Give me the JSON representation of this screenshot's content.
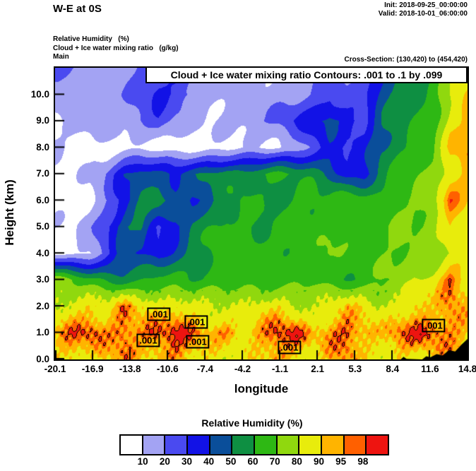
{
  "header": {
    "title": "W-E at 0S",
    "init": "Init: 2018-09-25_00:00:00",
    "valid": "Valid: 2018-10-01_06:00:00"
  },
  "info": {
    "line1": "Relative Humidity   (%)",
    "line2": "Cloud + Ice water mixing ratio   (g/kg)",
    "line3": "Main",
    "cross_section": "Cross-Section: (130,420) to (454,420)"
  },
  "plot": {
    "contour_title": "Cloud + Ice water mixing ratio Contours: .001 to .1 by .099",
    "xlabel": "longitude",
    "ylabel": "Height (km)"
  },
  "colorbar": {
    "title": "Relative Humidity  (%)",
    "labels": [
      "10",
      "20",
      "30",
      "40",
      "50",
      "60",
      "70",
      "80",
      "90",
      "95",
      "98"
    ],
    "colors": [
      "#ffffff",
      "#a3a3f3",
      "#4a4af0",
      "#1212e6",
      "#0a4e9a",
      "#0e8f42",
      "#2eb814",
      "#90d80e",
      "#e8ec0c",
      "#ffb400",
      "#ff6000",
      "#ee1410"
    ]
  },
  "chart_data": {
    "type": "heatmap",
    "subtype": "filled-contour-cross-section",
    "title": "W-E at 0S",
    "xlabel": "longitude",
    "ylabel": "Height (km)",
    "x_ticks": [
      "-20.1",
      "-16.9",
      "-13.8",
      "-10.6",
      "-7.4",
      "-4.2",
      "-1.1",
      "2.1",
      "5.3",
      "8.4",
      "11.6",
      "14.8"
    ],
    "y_ticks": [
      "0.0",
      "1.0",
      "2.0",
      "3.0",
      "4.0",
      "5.0",
      "6.0",
      "7.0",
      "8.0",
      "9.0",
      "10.0"
    ],
    "lon_min": -20.1,
    "lon_max": 14.8,
    "top_height_km": 11,
    "levels": [
      10,
      20,
      30,
      40,
      50,
      60,
      70,
      80,
      90,
      95,
      98
    ],
    "palette": [
      "#ffffff",
      "#a3a3f3",
      "#4a4af0",
      "#1212e6",
      "#0a4e9a",
      "#0e8f42",
      "#2eb814",
      "#90d80e",
      "#e8ec0c",
      "#ffb400",
      "#ff6000",
      "#ee1410"
    ],
    "grid_row_heights_km": [
      0,
      1,
      2,
      3,
      4,
      5,
      6,
      7,
      8,
      9,
      10,
      11
    ],
    "grid": [
      [
        88,
        92,
        86,
        90,
        95,
        88,
        92,
        96,
        90,
        86,
        80,
        85,
        90,
        96,
        88,
        84,
        90,
        95,
        88,
        85,
        90,
        85,
        88,
        92,
        90
      ],
      [
        92,
        96,
        99,
        94,
        99,
        96,
        99,
        99,
        96,
        92,
        96,
        90,
        94,
        99,
        99,
        92,
        96,
        99,
        94,
        90,
        96,
        99,
        99,
        96,
        92
      ],
      [
        80,
        85,
        90,
        86,
        95,
        88,
        84,
        90,
        86,
        82,
        78,
        80,
        85,
        88,
        82,
        78,
        84,
        90,
        86,
        80,
        85,
        92,
        88,
        95,
        90
      ],
      [
        78,
        68,
        62,
        58,
        55,
        60,
        65,
        62,
        58,
        62,
        65,
        68,
        65,
        62,
        65,
        68,
        65,
        62,
        65,
        70,
        72,
        78,
        85,
        99,
        90
      ],
      [
        8,
        8,
        12,
        25,
        45,
        38,
        32,
        45,
        55,
        62,
        65,
        68,
        65,
        62,
        65,
        68,
        72,
        65,
        62,
        68,
        72,
        75,
        72,
        80,
        85
      ],
      [
        8,
        8,
        15,
        30,
        48,
        55,
        28,
        35,
        52,
        58,
        65,
        62,
        58,
        62,
        65,
        62,
        68,
        72,
        65,
        68,
        72,
        68,
        75,
        92,
        88
      ],
      [
        6,
        6,
        8,
        18,
        35,
        50,
        58,
        45,
        40,
        48,
        55,
        62,
        58,
        55,
        62,
        65,
        62,
        68,
        65,
        62,
        68,
        72,
        78,
        95,
        90
      ],
      [
        5,
        6,
        10,
        22,
        40,
        48,
        42,
        38,
        45,
        52,
        58,
        55,
        60,
        62,
        58,
        55,
        48,
        35,
        38,
        55,
        62,
        68,
        72,
        88,
        92
      ],
      [
        12,
        8,
        6,
        5,
        5,
        5,
        5,
        5,
        6,
        6,
        6,
        8,
        8,
        10,
        15,
        25,
        35,
        28,
        35,
        50,
        58,
        62,
        68,
        90,
        95
      ],
      [
        8,
        12,
        15,
        18,
        15,
        22,
        28,
        18,
        12,
        10,
        12,
        15,
        18,
        22,
        30,
        38,
        45,
        35,
        28,
        48,
        55,
        60,
        65,
        85,
        92
      ],
      [
        15,
        18,
        12,
        15,
        18,
        25,
        32,
        28,
        22,
        15,
        12,
        15,
        12,
        15,
        18,
        22,
        28,
        22,
        25,
        45,
        55,
        58,
        62,
        80,
        90
      ],
      [
        25,
        18,
        15,
        12,
        15,
        22,
        28,
        32,
        18,
        12,
        15,
        18,
        15,
        12,
        15,
        18,
        22,
        18,
        22,
        40,
        52,
        55,
        58,
        75,
        85
      ]
    ],
    "cloud_contour_levels": [
      0.001,
      0.1
    ],
    "cloud_contour_labels": [
      {
        "fx": 0.252,
        "fy": 0.845,
        "text": ".001"
      },
      {
        "fx": 0.342,
        "fy": 0.872,
        "text": ".001"
      },
      {
        "fx": 0.226,
        "fy": 0.935,
        "text": ".001"
      },
      {
        "fx": 0.346,
        "fy": 0.939,
        "text": ".001"
      },
      {
        "fx": 0.568,
        "fy": 0.959,
        "text": ".001"
      },
      {
        "fx": 0.918,
        "fy": 0.884,
        "text": ".001"
      }
    ],
    "terrain": [
      [
        0.838,
        0
      ],
      [
        0.845,
        0.1
      ],
      [
        0.852,
        0.02
      ],
      [
        0.89,
        0.0
      ],
      [
        0.9,
        0.12
      ],
      [
        0.91,
        0.08
      ],
      [
        0.925,
        0.2
      ],
      [
        0.94,
        0.15
      ],
      [
        0.955,
        0.35
      ],
      [
        0.97,
        0.3
      ],
      [
        0.985,
        0.55
      ],
      [
        1.0,
        0.77
      ],
      [
        1.0,
        0
      ]
    ]
  }
}
